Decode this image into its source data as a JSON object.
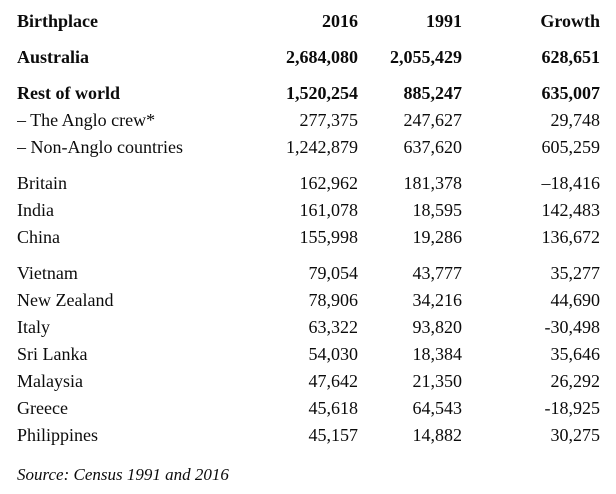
{
  "table": {
    "columns": {
      "birthplace": "Birthplace",
      "y2016": "2016",
      "y1991": "1991",
      "growth": "Growth"
    },
    "rows": [
      {
        "label": "Australia",
        "y2016": "2,684,080",
        "y1991": "2,055,429",
        "growth": "628,651"
      },
      {
        "label": "Rest of world",
        "y2016": "1,520,254",
        "y1991": "885,247",
        "growth": "635,007"
      },
      {
        "label": "– The Anglo crew*",
        "y2016": "277,375",
        "y1991": "247,627",
        "growth": "29,748"
      },
      {
        "label": "– Non-Anglo countries",
        "y2016": "1,242,879",
        "y1991": "637,620",
        "growth": "605,259"
      },
      {
        "label": "Britain",
        "y2016": "162,962",
        "y1991": "181,378",
        "growth": "–18,416"
      },
      {
        "label": "India",
        "y2016": "161,078",
        "y1991": "18,595",
        "growth": "142,483"
      },
      {
        "label": "China",
        "y2016": "155,998",
        "y1991": "19,286",
        "growth": "136,672"
      },
      {
        "label": "Vietnam",
        "y2016": "79,054",
        "y1991": "43,777",
        "growth": "35,277"
      },
      {
        "label": "New Zealand",
        "y2016": "78,906",
        "y1991": "34,216",
        "growth": "44,690"
      },
      {
        "label": "Italy",
        "y2016": "63,322",
        "y1991": "93,820",
        "growth": "-30,498"
      },
      {
        "label": "Sri Lanka",
        "y2016": "54,030",
        "y1991": "18,384",
        "growth": "35,646"
      },
      {
        "label": "Malaysia",
        "y2016": "47,642",
        "y1991": "21,350",
        "growth": "26,292"
      },
      {
        "label": "Greece",
        "y2016": "45,618",
        "y1991": "64,543",
        "growth": "-18,925"
      },
      {
        "label": "Philippines",
        "y2016": "45,157",
        "y1991": "14,882",
        "growth": "30,275"
      }
    ]
  },
  "source": "Source: Census 1991 and 2016",
  "colors": {
    "text": "#0b0b0b",
    "background": "#ffffff"
  }
}
